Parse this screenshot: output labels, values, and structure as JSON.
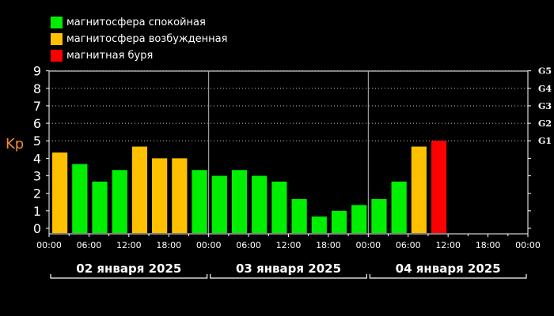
{
  "legend": [
    {
      "label": "магнитосфера спокойная",
      "color": "#00ee00"
    },
    {
      "label": "магнитосфера возбужденная",
      "color": "#ffc000"
    },
    {
      "label": "магнитная буря",
      "color": "#ff0000"
    }
  ],
  "chart_data": {
    "type": "bar",
    "ylabel": "Kp",
    "ylim": [
      0,
      9
    ],
    "yticks": [
      "0",
      "1",
      "2",
      "3",
      "4",
      "5",
      "6",
      "7",
      "8",
      "9"
    ],
    "g_scale": [
      {
        "label": "G1",
        "level": 5
      },
      {
        "label": "G2",
        "level": 6
      },
      {
        "label": "G3",
        "level": 7
      },
      {
        "label": "G4",
        "level": 8
      },
      {
        "label": "G5",
        "level": 9
      }
    ],
    "grid": true,
    "colors": {
      "quiet": "#00ee00",
      "active": "#ffc000",
      "storm": "#ff0000"
    },
    "days": [
      {
        "label": "02 января 2025",
        "time_ticks": [
          "00:00",
          "06:00",
          "12:00",
          "18:00"
        ],
        "values": [
          4.33,
          3.67,
          2.67,
          3.33,
          4.67,
          4.0,
          4.0,
          3.33
        ],
        "levels": [
          "active",
          "quiet",
          "quiet",
          "quiet",
          "active",
          "active",
          "active",
          "quiet"
        ]
      },
      {
        "label": "03 января 2025",
        "time_ticks": [
          "00:00",
          "06:00",
          "12:00",
          "18:00"
        ],
        "values": [
          3.0,
          3.33,
          3.0,
          2.67,
          1.67,
          0.67,
          1.0,
          1.33
        ],
        "levels": [
          "quiet",
          "quiet",
          "quiet",
          "quiet",
          "quiet",
          "quiet",
          "quiet",
          "quiet"
        ]
      },
      {
        "label": "04 января 2025",
        "time_ticks": [
          "00:00",
          "06:00",
          "12:00",
          "18:00",
          "00:00"
        ],
        "values": [
          1.67,
          2.67,
          4.67,
          5.0
        ],
        "levels": [
          "quiet",
          "quiet",
          "active",
          "storm"
        ]
      }
    ]
  }
}
